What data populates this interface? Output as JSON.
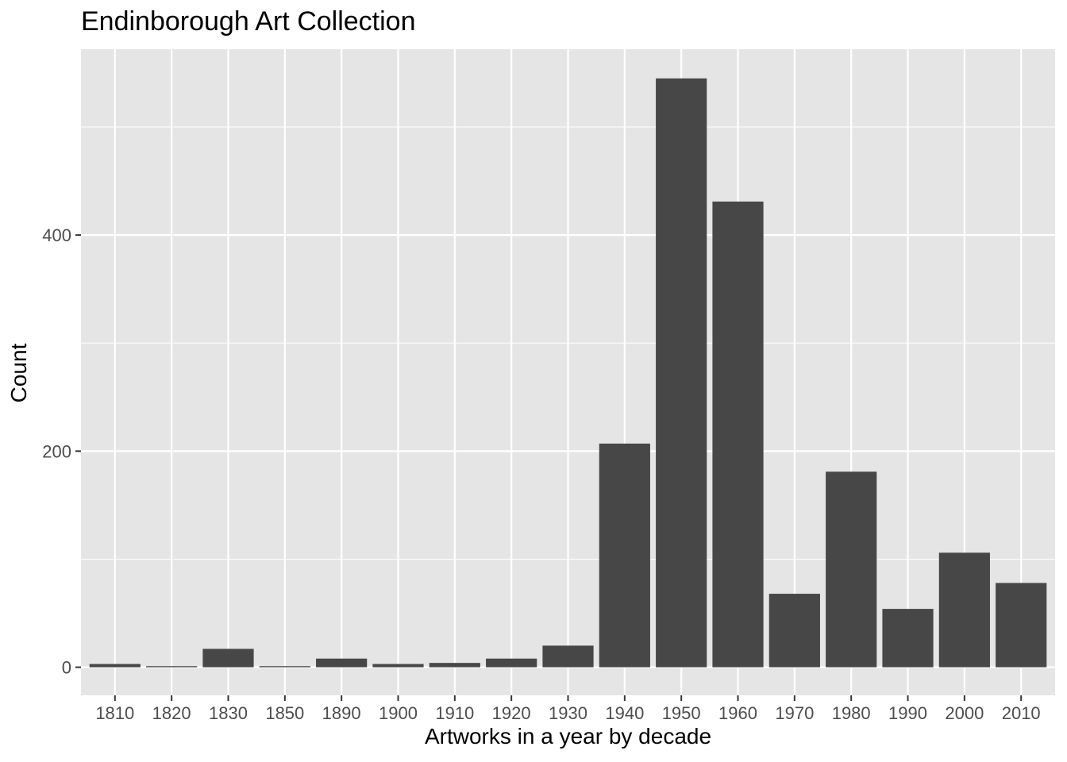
{
  "chart_data": {
    "type": "bar",
    "title": "Endinborough Art Collection",
    "xlabel": "Artworks in a year by decade",
    "ylabel": "Count",
    "categories": [
      "1810",
      "1820",
      "1830",
      "1850",
      "1890",
      "1900",
      "1910",
      "1920",
      "1930",
      "1940",
      "1950",
      "1960",
      "1970",
      "1980",
      "1990",
      "2000",
      "2010"
    ],
    "values": [
      3,
      1,
      17,
      1,
      8,
      3,
      4,
      8,
      20,
      207,
      545,
      431,
      68,
      181,
      54,
      106,
      78
    ],
    "yticks": [
      0,
      200,
      400
    ],
    "ylim": [
      -26,
      572
    ],
    "grid": true,
    "colors": {
      "panel_background": "#e5e5e5",
      "grid_line": "#ffffff",
      "bar_fill": "#474747",
      "axis_text": "#4d4d4d",
      "tick_mark": "#333333"
    }
  }
}
